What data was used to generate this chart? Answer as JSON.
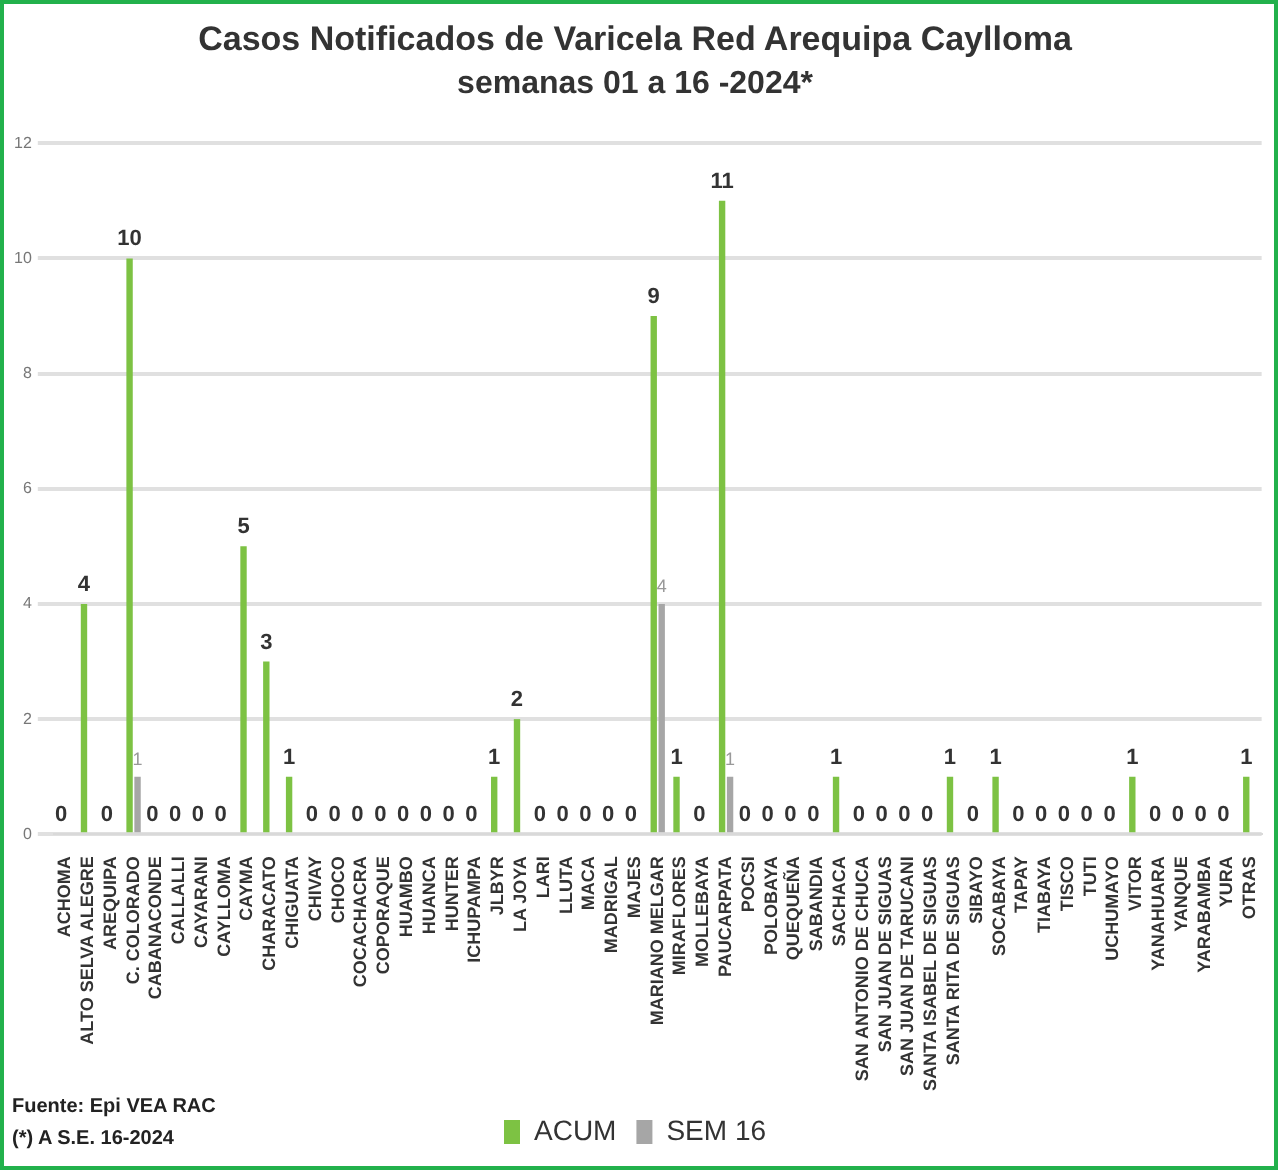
{
  "chart_data": {
    "type": "bar",
    "title": "Casos Notificados de Varicela Red Arequipa Caylloma",
    "subtitle": "semanas 01 a 16 -2024*",
    "categories": [
      "ACHOMA",
      "ALTO SELVA ALEGRE",
      "AREQUIPA",
      "C. COLORADO",
      "CABANACONDE",
      "CALLALLI",
      "CAYARANI",
      "CAYLLOMA",
      "CAYMA",
      "CHARACATO",
      "CHIGUATA",
      "CHIVAY",
      "CHOCO",
      "COCACHACRA",
      "COPORAQUE",
      "HUAMBO",
      "HUANCA",
      "HUNTER",
      "ICHUPAMPA",
      "JLBYR",
      "LA JOYA",
      "LARI",
      "LLUTA",
      "MACA",
      "MADRIGAL",
      "MAJES",
      "MARIANO MELGAR",
      "MIRAFLORES",
      "MOLLEBAYA",
      "PAUCARPATA",
      "POCSI",
      "POLOBAYA",
      "QUEQUEÑA",
      "SABANDIA",
      "SACHACA",
      "SAN ANTONIO DE CHUCA",
      "SAN JUAN DE SIGUAS",
      "SAN JUAN DE TARUCANI",
      "SANTA ISABEL DE SIGUAS",
      "SANTA RITA DE SIGUAS",
      "SIBAYO",
      "SOCABAYA",
      "TAPAY",
      "TIABAYA",
      "TISCO",
      "TUTI",
      "UCHUMAYO",
      "VITOR",
      "YANAHUARA",
      "YANQUE",
      "YARABAMBA",
      "YURA",
      "OTRAS"
    ],
    "series": [
      {
        "name": "ACUM",
        "color": "#7dc243",
        "values": [
          0,
          4,
          0,
          10,
          0,
          0,
          0,
          0,
          5,
          3,
          1,
          0,
          0,
          0,
          0,
          0,
          0,
          0,
          0,
          1,
          2,
          0,
          0,
          0,
          0,
          0,
          9,
          1,
          0,
          11,
          0,
          0,
          0,
          0,
          1,
          0,
          0,
          0,
          0,
          1,
          0,
          1,
          0,
          0,
          0,
          0,
          0,
          1,
          0,
          0,
          0,
          0,
          1
        ],
        "value_labels": [
          "0",
          "4",
          "0",
          "10",
          "0",
          "0",
          "0",
          "0",
          "5",
          "3",
          "1",
          "0",
          "0",
          "0",
          "0",
          "0",
          "0",
          "0",
          "0",
          "1",
          "2",
          "0",
          "0",
          "0",
          "0",
          "0",
          "9",
          "1",
          "0",
          "11",
          "0",
          "0",
          "0",
          "0",
          "1",
          "0",
          "0",
          "0",
          "0",
          "1",
          "0",
          "1",
          "0",
          "0",
          "0",
          "0",
          "0",
          "1",
          "0",
          "0",
          "0",
          "0",
          "1"
        ]
      },
      {
        "name": "SEM 16",
        "color": "#a6a6a6",
        "values": [
          0,
          0,
          0,
          1,
          0,
          0,
          0,
          0,
          0,
          0,
          0,
          0,
          0,
          0,
          0,
          0,
          0,
          0,
          0,
          0,
          0,
          0,
          0,
          0,
          0,
          0,
          4,
          0,
          0,
          1,
          0,
          0,
          0,
          0,
          0,
          0,
          0,
          0,
          0,
          0,
          0,
          0,
          0,
          0,
          0,
          0,
          0,
          0,
          0,
          0,
          0,
          0,
          0
        ],
        "value_labels": [
          null,
          null,
          null,
          "1",
          null,
          null,
          null,
          null,
          null,
          null,
          null,
          null,
          null,
          null,
          null,
          null,
          null,
          null,
          null,
          null,
          null,
          null,
          null,
          null,
          null,
          null,
          "4",
          null,
          null,
          "1",
          null,
          null,
          null,
          null,
          null,
          null,
          null,
          null,
          null,
          null,
          null,
          null,
          null,
          null,
          null,
          null,
          null,
          null,
          null,
          null,
          null,
          null,
          null
        ]
      }
    ],
    "ylim": [
      0,
      12
    ],
    "yticks": [
      0,
      2,
      4,
      6,
      8,
      10,
      12
    ],
    "grid": "y",
    "legend": "bottom",
    "annotations": [
      "Fuente: Epi VEA RAC",
      "(*) A S.E. 16-2024"
    ]
  }
}
